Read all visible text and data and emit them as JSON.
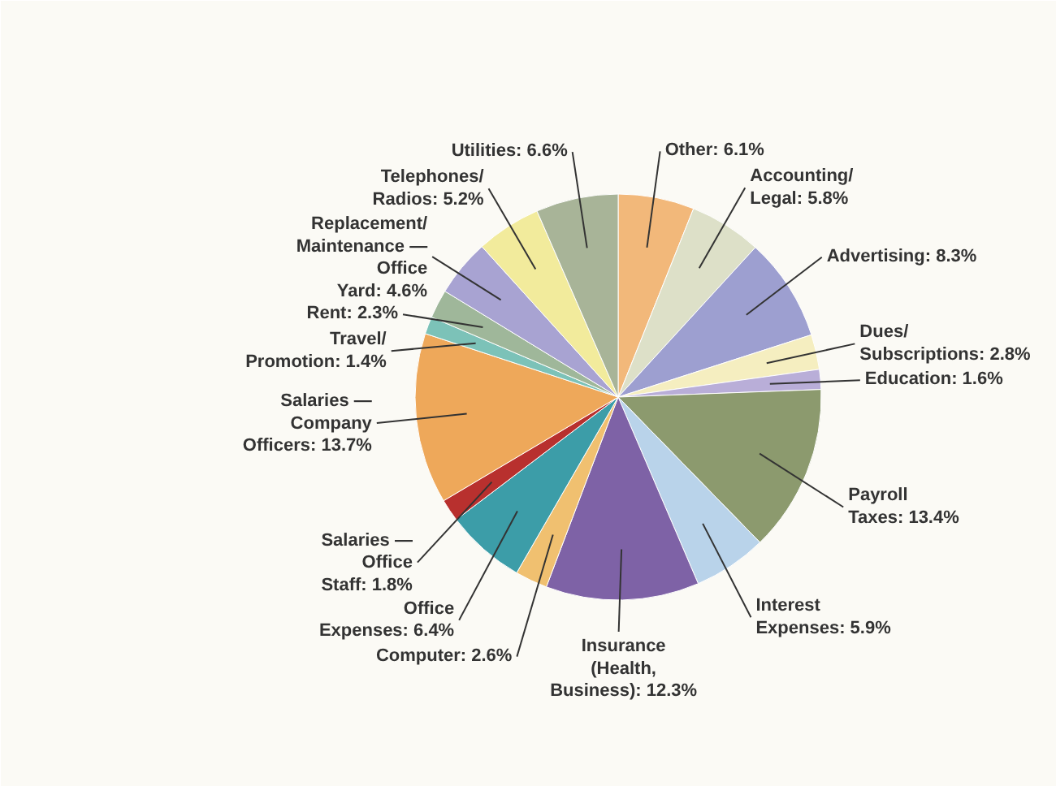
{
  "chart_data": {
    "type": "pie",
    "value_labels": [
      "6.1%",
      "5.8%",
      "8.3%",
      "2.8%",
      "1.6%",
      "13.4%",
      "5.9%",
      "12.3%",
      "2.6%",
      "6.4%",
      "1.8%",
      "13.7%",
      "1.4%",
      "2.3%",
      "4.6%",
      "5.2%",
      "6.6%"
    ],
    "categories": [
      "Other",
      "Accounting/Legal",
      "Advertising",
      "Dues/Subscriptions",
      "Education",
      "Payroll Taxes",
      "Interest Expenses",
      "Insurance (Health, Business)",
      "Computer",
      "Office Expenses",
      "Salaries — Office Staff",
      "Salaries — Company Officers",
      "Travel/Promotion",
      "Rent",
      "Replacement/Maintenance — Office Yard",
      "Telephones/Radios",
      "Utilities"
    ],
    "values": [
      6.1,
      5.8,
      8.3,
      2.8,
      1.6,
      13.4,
      5.9,
      12.3,
      2.6,
      6.4,
      1.8,
      13.7,
      1.4,
      2.3,
      4.6,
      5.2,
      6.6
    ],
    "colors": [
      "#f2b87a",
      "#dde0c8",
      "#9d9fd0",
      "#f5eec0",
      "#b9aed8",
      "#8c9a6e",
      "#b9d3ea",
      "#7e62a6",
      "#f0c070",
      "#3c9da8",
      "#b8302e",
      "#eea85a",
      "#7cc2b8",
      "#9fb79a",
      "#a8a3d2",
      "#f2eb9c",
      "#a8b498"
    ]
  }
}
